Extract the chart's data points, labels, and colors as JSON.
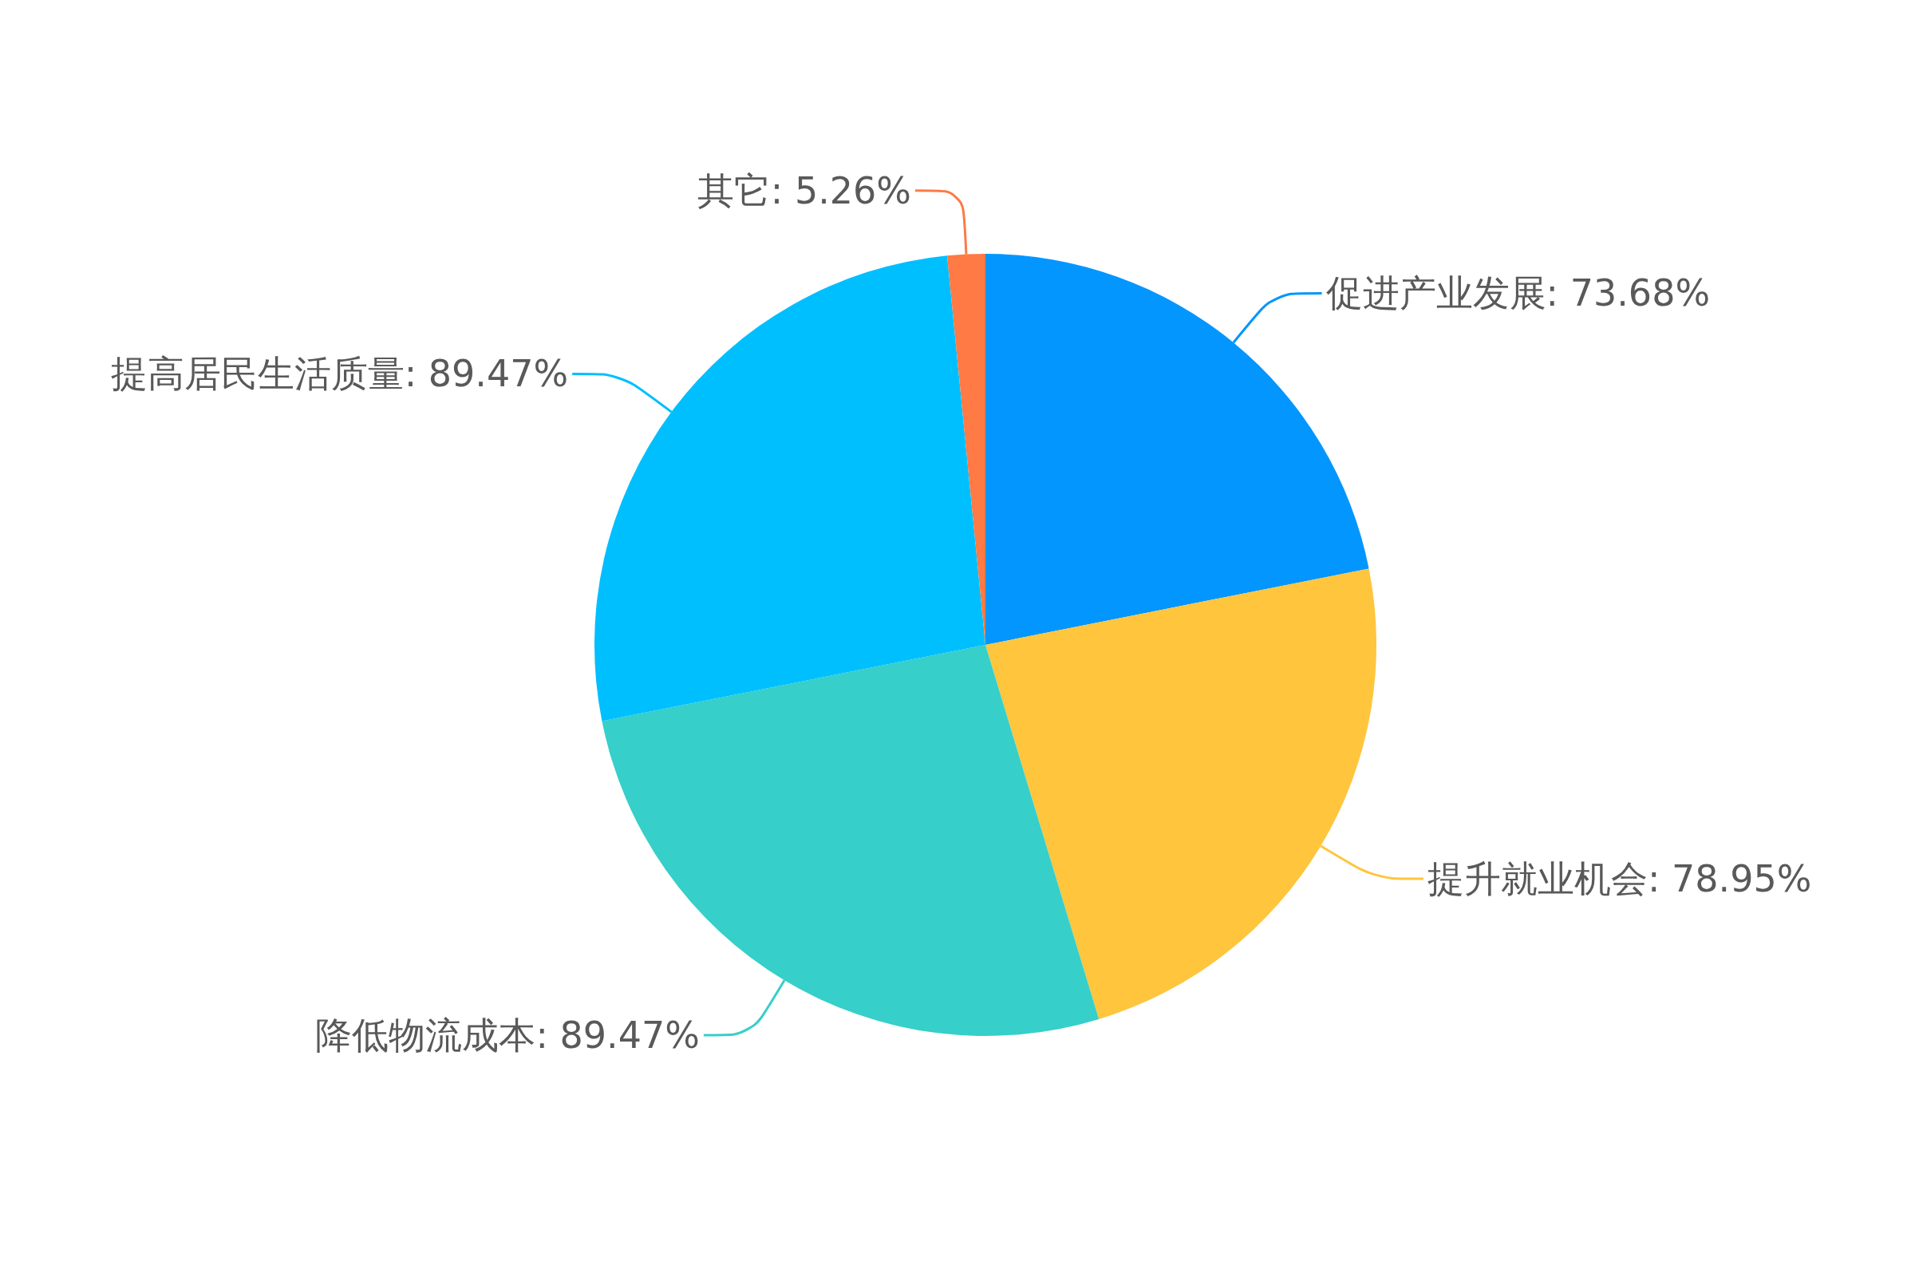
{
  "chart_data": {
    "type": "pie",
    "categories": [
      "促进产业发展",
      "提升就业机会",
      "降低物流成本",
      "提高居民生活质量",
      "其它"
    ],
    "values": [
      73.68,
      78.95,
      89.47,
      89.47,
      5.26
    ],
    "value_labels": [
      "73.68%",
      "78.95%",
      "89.47%",
      "89.47%",
      "5.26%"
    ],
    "colors": [
      "#0396fe",
      "#ffc53d",
      "#36cfc9",
      "#00bfff",
      "#ff7a45"
    ],
    "legend": false
  }
}
